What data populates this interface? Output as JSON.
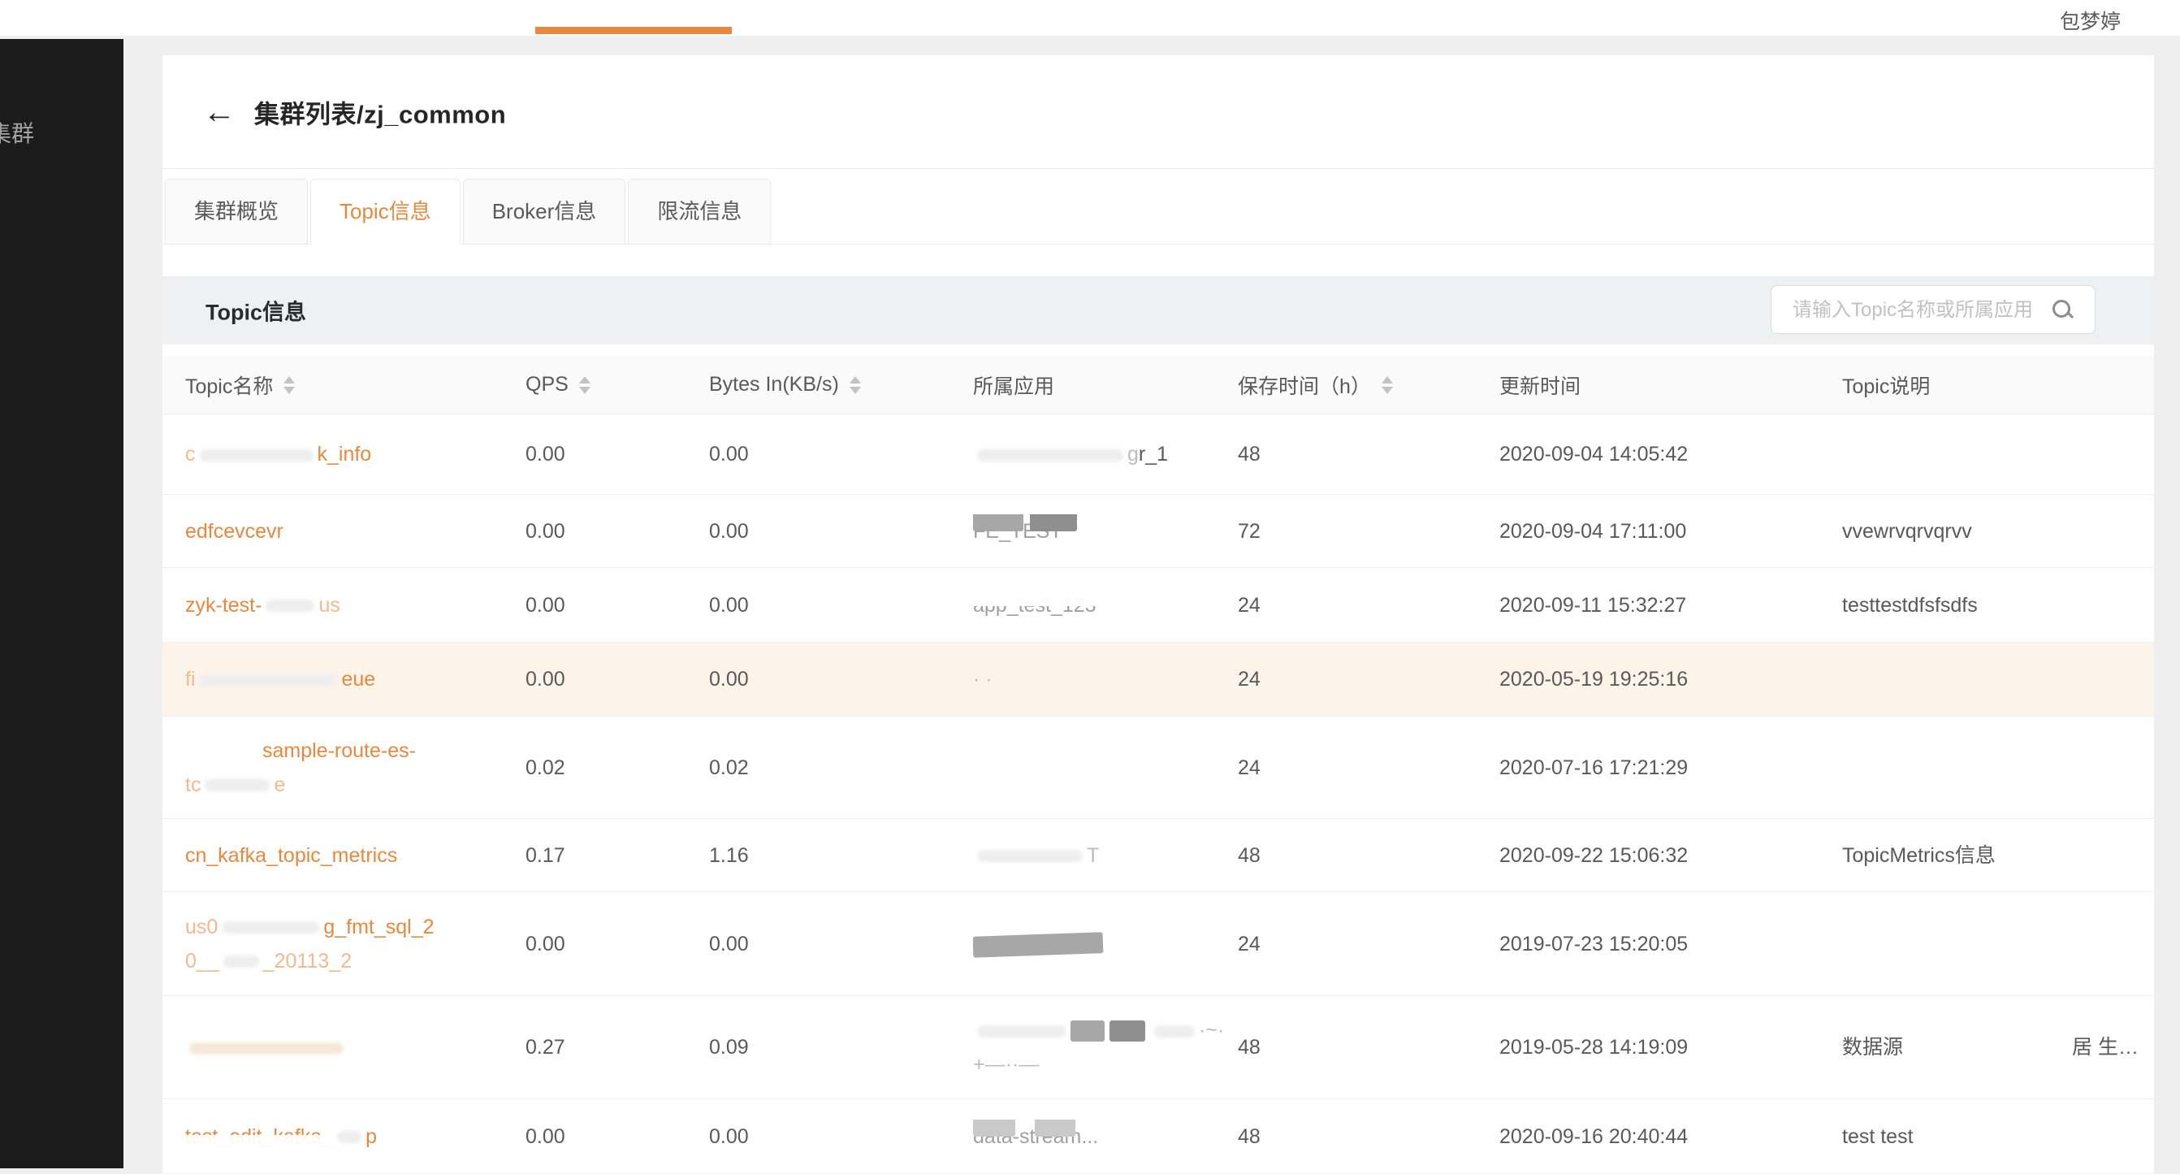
{
  "topbar": {
    "username": "包梦婷",
    "accent_color": "#e8883e"
  },
  "sidebar": {
    "item_label": "集群"
  },
  "header": {
    "back_glyph": "←",
    "title": "集群列表/zj_common"
  },
  "tabs": [
    {
      "label": "集群概览",
      "active": false
    },
    {
      "label": "Topic信息",
      "active": true
    },
    {
      "label": "Broker信息",
      "active": false
    },
    {
      "label": "限流信息",
      "active": false
    }
  ],
  "section": {
    "title": "Topic信息",
    "search_placeholder": "请输入Topic名称或所属应用"
  },
  "table": {
    "columns": [
      {
        "label": "Topic名称",
        "sortable": true
      },
      {
        "label": "QPS",
        "sortable": true
      },
      {
        "label": "Bytes In(KB/s)",
        "sortable": true
      },
      {
        "label": "所属应用",
        "sortable": false
      },
      {
        "label": "保存时间（h）",
        "sortable": true
      },
      {
        "label": "更新时间",
        "sortable": false
      },
      {
        "label": "Topic说明",
        "sortable": false
      },
      {
        "label": "",
        "sortable": false
      }
    ],
    "rows": [
      {
        "h": 98,
        "highlight": false,
        "name": [
          {
            "type": "glink",
            "text": "c"
          },
          {
            "type": "smear",
            "w": 140
          },
          {
            "type": "link",
            "text": "k_info"
          }
        ],
        "qps": "0.00",
        "bytes": "0.00",
        "app": [
          {
            "type": "smear",
            "w": 180
          },
          {
            "type": "ghost",
            "text": "g"
          },
          {
            "type": "text",
            "text": "r_1"
          }
        ],
        "retention": "48",
        "updated": "2020-09-04 14:05:42",
        "desc": "",
        "extra": ""
      },
      {
        "h": 89,
        "highlight": false,
        "name": [
          {
            "type": "link",
            "text": "edfcevcevr"
          }
        ],
        "qps": "0.00",
        "bytes": "0.00",
        "app": [
          {
            "type": "cover",
            "text": "FE_TEST",
            "blocks": [
              [
                0,
                62,
                "mid"
              ],
              [
                70,
                58,
                "dark"
              ]
            ]
          }
        ],
        "retention": "72",
        "updated": "2020-09-04 17:11:00",
        "desc": "vvewrvqrvqrvv",
        "extra": ""
      },
      {
        "h": 91,
        "highlight": false,
        "name": [
          {
            "type": "link",
            "text": "zyk-test-"
          },
          {
            "type": "smear",
            "w": 60
          },
          {
            "type": "glink",
            "text": "us"
          }
        ],
        "qps": "0.00",
        "bytes": "0.00",
        "app": [
          {
            "type": "et",
            "text": "app_test_123"
          }
        ],
        "retention": "24",
        "updated": "2020-09-11 15:32:27",
        "desc": "testtestdfsfsdfs",
        "extra": ""
      },
      {
        "h": 90,
        "highlight": true,
        "name": [
          {
            "type": "glink",
            "text": "fi"
          },
          {
            "type": "smear",
            "w": 170
          },
          {
            "type": "link",
            "text": "eue"
          }
        ],
        "qps": "0.00",
        "bytes": "0.00",
        "app": [
          {
            "type": "ghost",
            "text": "· ·"
          }
        ],
        "retention": "24",
        "updated": "2020-05-19 19:25:16",
        "desc": "",
        "extra": ""
      },
      {
        "h": 125,
        "highlight": false,
        "name": [
          {
            "type": "space",
            "w": 95
          },
          {
            "type": "link",
            "text": "sample-route-es-"
          },
          {
            "type": "br"
          },
          {
            "type": "glink",
            "text": "tc"
          },
          {
            "type": "smear",
            "w": 80
          },
          {
            "type": "glink",
            "text": "e"
          }
        ],
        "qps": "0.02",
        "bytes": "0.02",
        "app": [],
        "retention": "24",
        "updated": "2020-07-16 17:21:29",
        "desc": "",
        "extra": ""
      },
      {
        "h": 89,
        "highlight": false,
        "name": [
          {
            "type": "link",
            "text": "cn_kafka_topic_metrics"
          }
        ],
        "qps": "0.17",
        "bytes": "1.16",
        "app": [
          {
            "type": "smear",
            "w": 130
          },
          {
            "type": "ghost",
            "text": "T"
          }
        ],
        "retention": "48",
        "updated": "2020-09-22 15:06:32",
        "desc": "TopicMetrics信息",
        "extra": ""
      },
      {
        "h": 127,
        "highlight": false,
        "name": [
          {
            "type": "glink",
            "text": "us0"
          },
          {
            "type": "smear",
            "w": 120
          },
          {
            "type": "link",
            "text": "g_fmt_sql_2"
          },
          {
            "type": "br"
          },
          {
            "type": "glink",
            "text": "0__"
          },
          {
            "type": "smear",
            "w": 44
          },
          {
            "type": "glink",
            "text": "_20113_2"
          }
        ],
        "qps": "0.00",
        "bytes": "0.00",
        "app": [
          {
            "type": "blk",
            "w": 160,
            "shade": "mid",
            "tilt": true
          }
        ],
        "retention": "24",
        "updated": "2019-07-23 15:20:05",
        "desc": "",
        "extra": ""
      },
      {
        "h": 126,
        "highlight": false,
        "name": [
          {
            "type": "smear",
            "w": 190,
            "warm": true
          }
        ],
        "qps": "0.27",
        "bytes": "0.09",
        "app": [
          {
            "type": "smear",
            "w": 110
          },
          {
            "type": "blk",
            "w": 42,
            "shade": "mid"
          },
          {
            "type": "blk",
            "w": 44,
            "shade": "dark"
          },
          {
            "type": "smear",
            "w": 50
          },
          {
            "type": "ghost",
            "text": "·~·"
          },
          {
            "type": "br"
          },
          {
            "type": "ghost",
            "text": "+—··—"
          }
        ],
        "retention": "48",
        "updated": "2019-05-28 14:19:09",
        "desc": "数据源",
        "extra": "居 生…"
      },
      {
        "h": 91,
        "highlight": false,
        "name": [
          {
            "type": "eb",
            "text": "test_edit_kafka_"
          },
          {
            "type": "smear",
            "w": 30
          },
          {
            "type": "link",
            "text": "p"
          }
        ],
        "qps": "0.00",
        "bytes": "0.00",
        "app": [
          {
            "type": "cover",
            "text": "data-stream...",
            "blocks": [
              [
                0,
                52,
                "light"
              ],
              [
                76,
                50,
                "light"
              ]
            ]
          }
        ],
        "retention": "48",
        "updated": "2020-09-16 20:40:44",
        "desc": "test test",
        "extra": ""
      }
    ]
  }
}
